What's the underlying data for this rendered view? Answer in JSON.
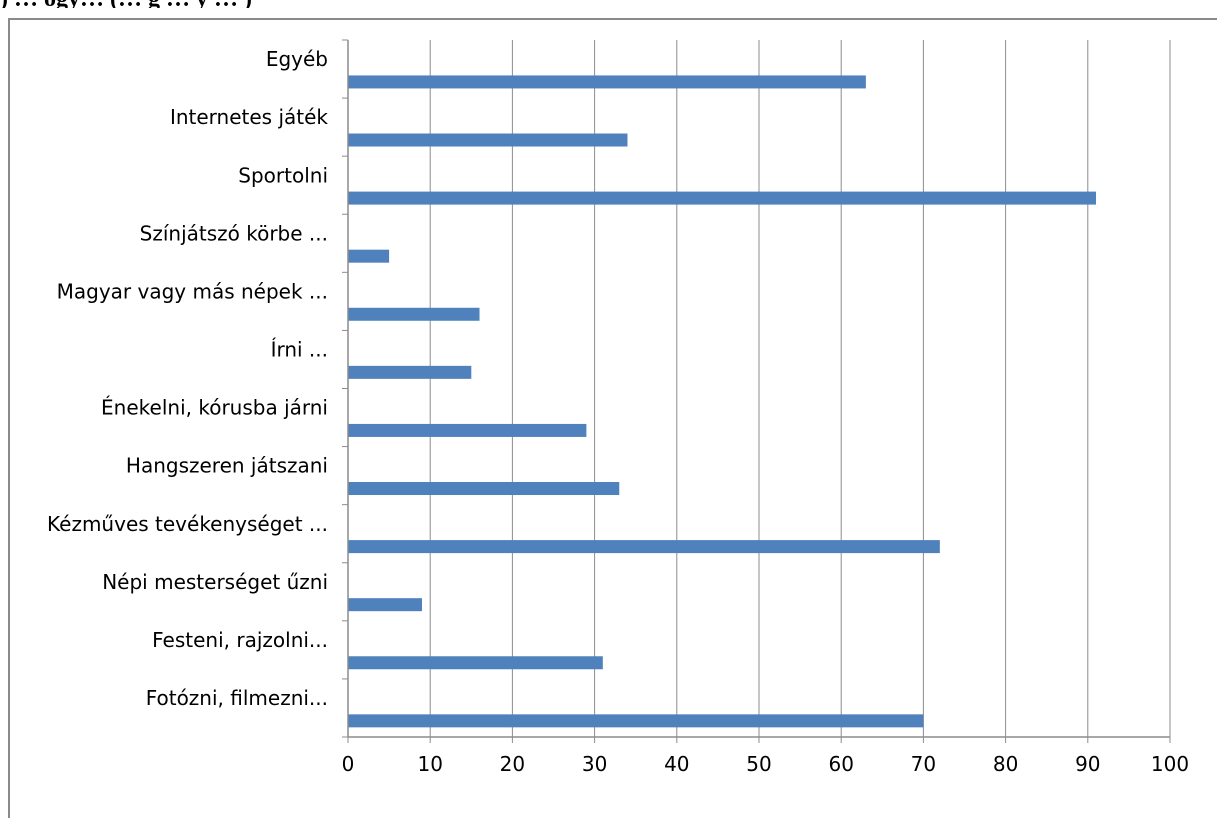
{
  "caption": ") … ogy… (… g … y … )",
  "chart_data": {
    "type": "bar",
    "orientation": "horizontal",
    "categories": [
      "Egyéb",
      "Internetes játék",
      "Sportolni",
      "Színjátszó körbe ...",
      "Magyar vagy más népek ...",
      "Írni ...",
      "Énekelni, kórusba járni",
      "Hangszeren játszani",
      "Kézműves tevékenységet ...",
      "Népi mesterséget  űzni",
      "Festeni, rajzolni...",
      "Fotózni, filmezni..."
    ],
    "values": [
      63,
      34,
      91,
      5,
      16,
      15,
      29,
      33,
      72,
      9,
      31,
      70
    ],
    "xlim": [
      0,
      100
    ],
    "xticks": [
      0,
      10,
      20,
      30,
      40,
      50,
      60,
      70,
      80,
      90,
      100
    ],
    "grid": true,
    "bar_color": "#4f81bd",
    "grid_color": "#8c8c8c",
    "title": "",
    "xlabel": "",
    "ylabel": ""
  }
}
